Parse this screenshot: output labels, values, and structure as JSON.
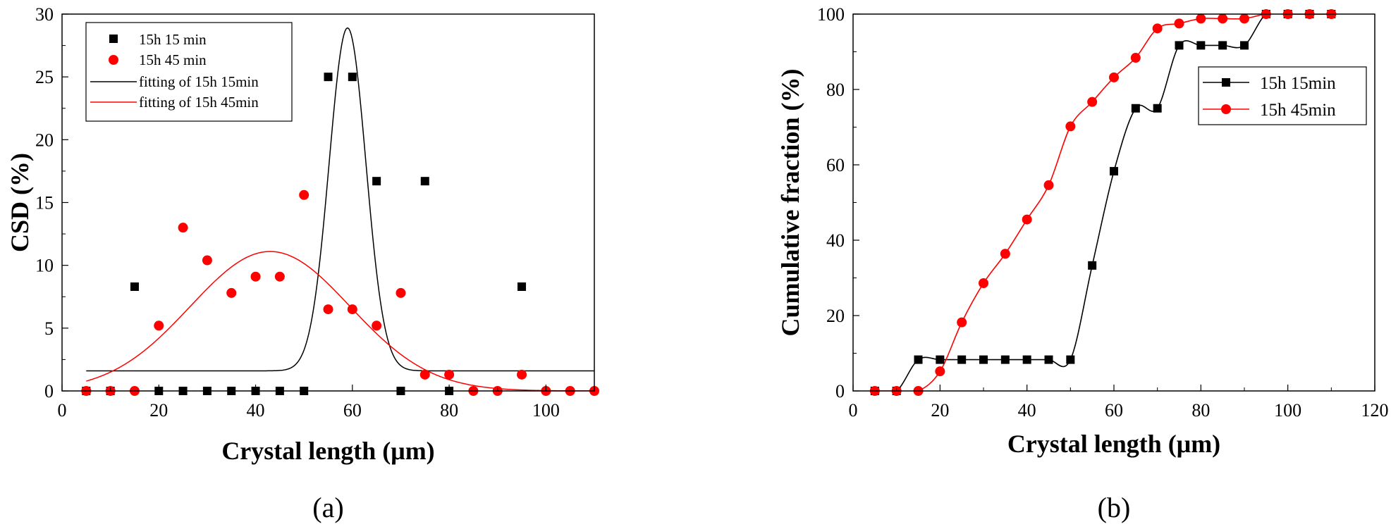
{
  "chart_data": [
    {
      "panel_label": "(a)",
      "type": "scatter",
      "xlabel": "Crystal length (μm)",
      "ylabel": "CSD (%)",
      "xlim": [
        0,
        110
      ],
      "ylim": [
        0,
        30
      ],
      "xticks": [
        0,
        20,
        40,
        60,
        80,
        100
      ],
      "yticks": [
        0,
        5,
        10,
        15,
        20,
        25,
        30
      ],
      "grid": false,
      "legend_position": "top-left",
      "series": [
        {
          "name": "15h 15 min",
          "kind": "points",
          "marker": "square",
          "color": "#000000",
          "x": [
            5,
            10,
            15,
            20,
            25,
            30,
            35,
            40,
            45,
            50,
            55,
            60,
            65,
            70,
            75,
            80,
            95
          ],
          "y": [
            0,
            0,
            8.3,
            0,
            0,
            0,
            0,
            0,
            0,
            0,
            25,
            25,
            16.7,
            0,
            16.7,
            0,
            8.3
          ]
        },
        {
          "name": "15h 45 min",
          "kind": "points",
          "marker": "circle",
          "color": "#ff0000",
          "x": [
            5,
            10,
            15,
            20,
            25,
            30,
            35,
            40,
            45,
            50,
            55,
            60,
            65,
            70,
            75,
            80,
            85,
            90,
            95,
            100,
            105,
            110
          ],
          "y": [
            0,
            0,
            0,
            5.2,
            13.0,
            10.4,
            7.8,
            9.1,
            9.1,
            15.6,
            6.5,
            6.5,
            5.2,
            7.8,
            1.3,
            1.3,
            0,
            0,
            1.3,
            0,
            0,
            0
          ]
        },
        {
          "name": "fitting of 15h 15min",
          "kind": "gaussian",
          "color": "#000000",
          "y0": 1.6,
          "amplitude": 27.3,
          "center": 59,
          "sigma": 3.8,
          "x_range": [
            5,
            110
          ]
        },
        {
          "name": "fitting of 15h 45min",
          "kind": "gaussian",
          "color": "#ff0000",
          "y0": 0,
          "amplitude": 11.1,
          "center": 43,
          "sigma": 16.5,
          "x_range": [
            5,
            110
          ]
        }
      ]
    },
    {
      "panel_label": "(b)",
      "type": "line",
      "xlabel": "Crystal length (μm)",
      "ylabel": "Cumulative fraction (%)",
      "xlim": [
        0,
        120
      ],
      "ylim": [
        0,
        100
      ],
      "xticks": [
        0,
        20,
        40,
        60,
        80,
        100,
        120
      ],
      "yticks": [
        0,
        20,
        40,
        60,
        80,
        100
      ],
      "grid": false,
      "legend_position": "top-right",
      "series": [
        {
          "name": "15h 15min",
          "marker": "square",
          "color": "#000000",
          "x": [
            5,
            10,
            15,
            20,
            25,
            30,
            35,
            40,
            45,
            50,
            55,
            60,
            65,
            70,
            75,
            80,
            85,
            90,
            95,
            100,
            105,
            110
          ],
          "y": [
            0,
            0,
            8.3,
            8.3,
            8.3,
            8.3,
            8.3,
            8.3,
            8.3,
            8.3,
            33.3,
            58.3,
            75,
            75,
            91.7,
            91.7,
            91.7,
            91.7,
            100,
            100,
            100,
            100
          ]
        },
        {
          "name": "15h 45min",
          "marker": "circle",
          "color": "#ff0000",
          "x": [
            5,
            10,
            15,
            20,
            25,
            30,
            35,
            40,
            45,
            50,
            55,
            60,
            65,
            70,
            75,
            80,
            85,
            90,
            95,
            100,
            105,
            110
          ],
          "y": [
            0,
            0,
            0,
            5.2,
            18.2,
            28.6,
            36.4,
            45.5,
            54.6,
            70.2,
            76.7,
            83.2,
            88.4,
            96.2,
            97.5,
            98.8,
            98.8,
            98.8,
            100,
            100,
            100,
            100
          ]
        }
      ]
    }
  ]
}
